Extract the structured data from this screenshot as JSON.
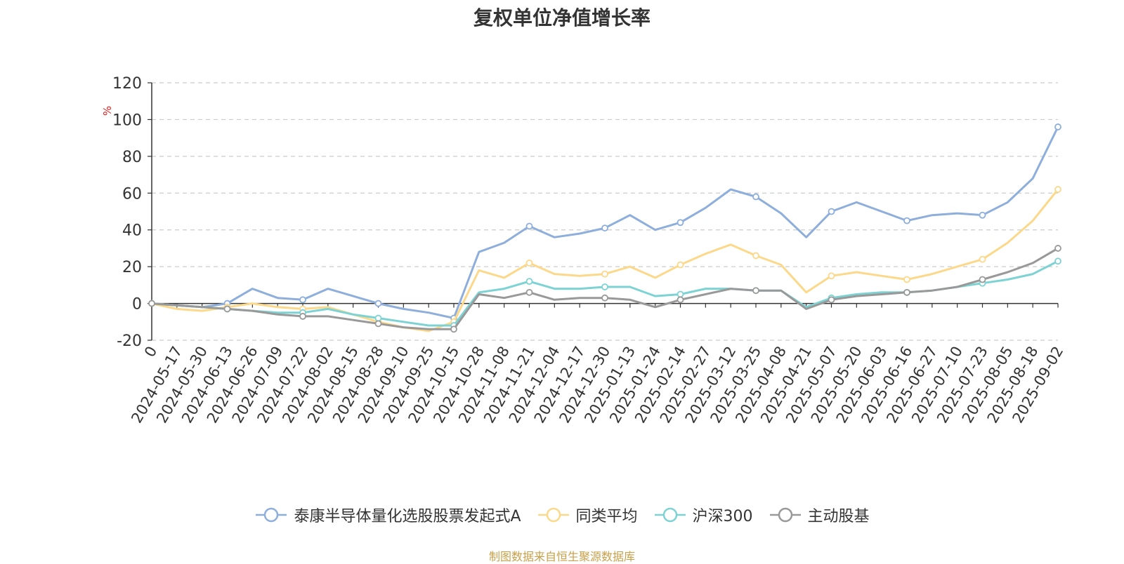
{
  "chart_data": {
    "type": "line",
    "title": "复权单位净值增长率",
    "ylabel": "%",
    "ylim": [
      -20,
      120
    ],
    "yticks": [
      -20,
      0,
      20,
      40,
      60,
      80,
      100,
      120
    ],
    "x_tick_labels": [
      "0",
      "2024-05-17",
      "2024-05-30",
      "2024-06-13",
      "2024-06-26",
      "2024-07-09",
      "2024-07-22",
      "2024-08-02",
      "2024-08-15",
      "2024-08-28",
      "2024-09-10",
      "2024-09-25",
      "2024-10-15",
      "2024-10-28",
      "2024-11-08",
      "2024-11-21",
      "2024-12-04",
      "2024-12-17",
      "2024-12-30",
      "2025-01-13",
      "2025-01-24",
      "2025-02-14",
      "2025-02-27",
      "2025-03-12",
      "2025-03-25",
      "2025-04-08",
      "2025-04-21",
      "2025-05-07",
      "2025-05-20",
      "2025-06-03",
      "2025-06-16",
      "2025-06-27",
      "2025-07-10",
      "2025-07-23",
      "2025-08-05",
      "2025-08-18",
      "2025-09-02"
    ],
    "x": [
      0,
      1,
      2,
      3,
      4,
      5,
      6,
      7,
      8,
      9,
      10,
      11,
      12,
      13,
      14,
      15,
      16,
      17,
      18,
      19,
      20,
      21,
      22,
      23,
      24,
      25,
      26,
      27,
      28,
      29,
      30,
      31,
      32,
      33,
      34,
      35,
      36
    ],
    "grid": true,
    "legend_position": "bottom",
    "series": [
      {
        "name": "泰康半导体量化选股股票发起式A",
        "color": "#8eaedb",
        "values": [
          0,
          -1,
          -2,
          0,
          8,
          3,
          2,
          8,
          4,
          0,
          -3,
          -5,
          -8,
          28,
          33,
          42,
          36,
          38,
          41,
          48,
          40,
          44,
          52,
          62,
          58,
          49,
          36,
          50,
          55,
          50,
          45,
          48,
          49,
          48,
          55,
          68,
          96
        ]
      },
      {
        "name": "同类平均",
        "color": "#fbd88a",
        "values": [
          0,
          -3,
          -4,
          -2,
          0,
          -2,
          -3,
          -2,
          -6,
          -10,
          -13,
          -15,
          -10,
          18,
          14,
          22,
          16,
          15,
          16,
          20,
          14,
          21,
          27,
          32,
          26,
          21,
          6,
          15,
          17,
          15,
          13,
          16,
          20,
          24,
          33,
          45,
          62
        ]
      },
      {
        "name": "沪深300",
        "color": "#7dd3d4",
        "values": [
          0,
          -1,
          -2,
          -3,
          -4,
          -5,
          -5,
          -3,
          -6,
          -8,
          -10,
          -12,
          -12,
          6,
          8,
          12,
          8,
          8,
          9,
          9,
          4,
          5,
          8,
          8,
          7,
          7,
          -2,
          3,
          5,
          6,
          6,
          7,
          9,
          11,
          13,
          16,
          23
        ]
      },
      {
        "name": "主动股基",
        "color": "#999999",
        "values": [
          0,
          -1,
          -2,
          -3,
          -4,
          -6,
          -7,
          -7,
          -9,
          -11,
          -13,
          -14,
          -14,
          5,
          3,
          6,
          2,
          3,
          3,
          2,
          -2,
          2,
          5,
          8,
          7,
          7,
          -3,
          2,
          4,
          5,
          6,
          7,
          9,
          13,
          17,
          22,
          30
        ]
      }
    ]
  },
  "source_note": "制图数据来自恒生聚源数据库"
}
